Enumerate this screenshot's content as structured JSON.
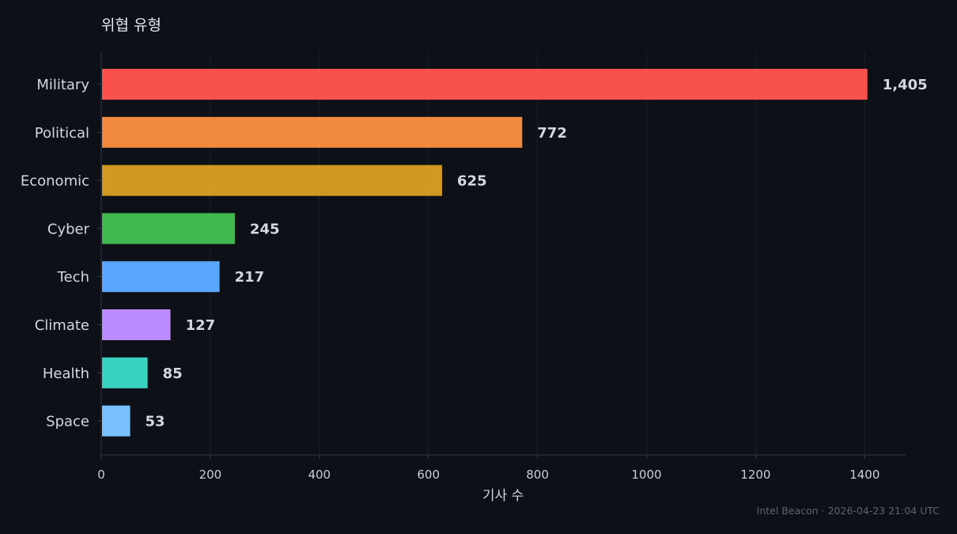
{
  "chart_data": {
    "type": "bar",
    "orientation": "horizontal",
    "title": "위협 유형",
    "xlabel": "기사 수",
    "ylabel": "",
    "categories": [
      "Military",
      "Political",
      "Economic",
      "Cyber",
      "Tech",
      "Climate",
      "Health",
      "Space"
    ],
    "values": [
      1405,
      772,
      625,
      245,
      217,
      127,
      85,
      53
    ],
    "value_labels": [
      "1,405",
      "772",
      "625",
      "245",
      "217",
      "127",
      "85",
      "53"
    ],
    "colors": [
      "#f9514b",
      "#f0883e",
      "#d29922",
      "#3fb950",
      "#58a6ff",
      "#bc8cff",
      "#39d2c0",
      "#79c0ff"
    ],
    "xlim": [
      0,
      1475
    ],
    "xticks": [
      0,
      200,
      400,
      600,
      800,
      1000,
      1200,
      1400
    ],
    "xtick_labels": [
      "0",
      "200",
      "400",
      "600",
      "800",
      "1000",
      "1200",
      "1400"
    ],
    "grid": "vertical",
    "legend": "none"
  },
  "footer": "Intel Beacon · 2026-04-23 21:04 UTC"
}
